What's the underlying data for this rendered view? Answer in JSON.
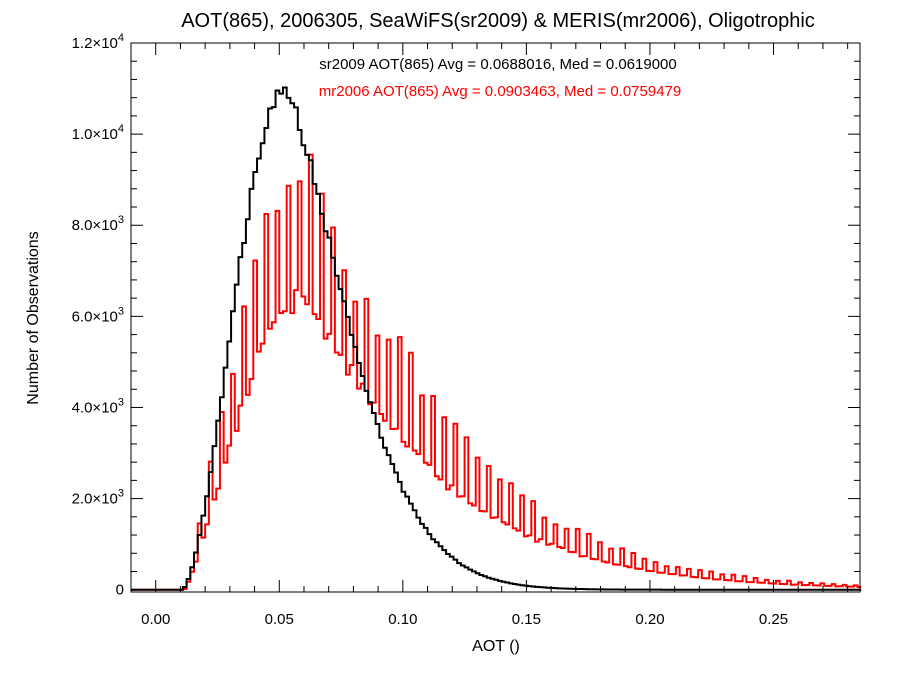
{
  "chart_data": {
    "type": "bar",
    "title": "AOT(865), 2006305, SeaWiFS(sr2009) & MERIS(mr2006), Oligotrophic",
    "xlabel": "AOT ()",
    "ylabel": "Number of Observations",
    "xlim": [
      -0.01,
      0.285
    ],
    "ylim": [
      -50,
      12000
    ],
    "bin_width": 0.0015,
    "grid": false,
    "xticks": [
      "0.00",
      "0.05",
      "0.10",
      "0.15",
      "0.20",
      "0.25"
    ],
    "xtick_values": [
      0.0,
      0.05,
      0.1,
      0.15,
      0.2,
      0.25
    ],
    "yticks": [
      {
        "value": 0,
        "mantissa": "0",
        "exp": ""
      },
      {
        "value": 2000,
        "mantissa": "2.0×10",
        "exp": "3"
      },
      {
        "value": 4000,
        "mantissa": "4.0×10",
        "exp": "3"
      },
      {
        "value": 6000,
        "mantissa": "6.0×10",
        "exp": "3"
      },
      {
        "value": 8000,
        "mantissa": "8.0×10",
        "exp": "3"
      },
      {
        "value": 10000,
        "mantissa": "1.0×10",
        "exp": "4"
      },
      {
        "value": 12000,
        "mantissa": "1.2×10",
        "exp": "4"
      }
    ],
    "annotations": [
      {
        "text": "sr2009 AOT(865) Avg = 0.0688016, Med = 0.0619000",
        "color": "#000000"
      },
      {
        "text": "mr2006 AOT(865) Avg = 0.0903463, Med = 0.0759479",
        "color": "#ff0000"
      }
    ],
    "series": [
      {
        "name": "sr2009",
        "color": "#000000",
        "histogram": {
          "mean": 0.0688016,
          "median": 0.0619,
          "mode": 0.052,
          "peak": 10900
        }
      },
      {
        "name": "mr2006",
        "color": "#ff0000",
        "histogram": {
          "mean": 0.0903463,
          "median": 0.0759479,
          "mode": 0.06,
          "base_peak": 6500,
          "spike_peak": 9550
        }
      }
    ]
  }
}
